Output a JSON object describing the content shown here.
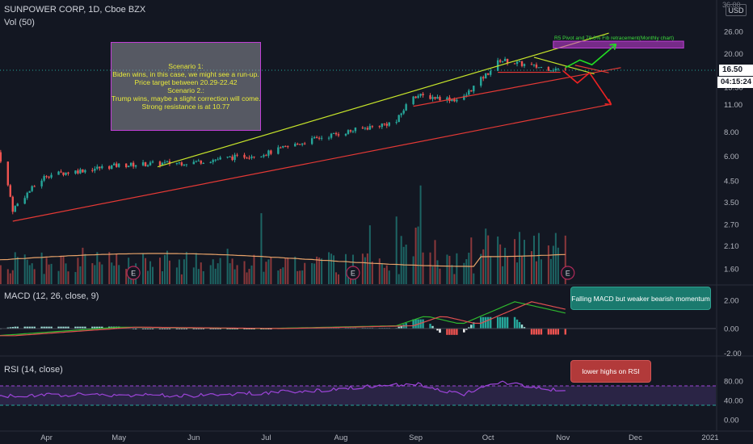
{
  "header": {
    "symbol": "SUNPOWER CORP, 1D, Cboe BZX",
    "vol": "Vol (50)",
    "currency": "USD"
  },
  "macd_header": "MACD (12, 26, close, 9)",
  "rsi_header": "RSI (14, close)",
  "annotations": {
    "scenario_lines": [
      "Scenario 1:",
      "Biden wins, in this case, we might see a run-up.",
      "Price target between 20.29-22.42",
      "Scenario 2.:",
      "Trump wins, maybe a slight correction will come.",
      "Strong resistance is at 10.77"
    ],
    "fib_label": "R5 Pivot and 78.6% Fib retracement(Monthly chart)",
    "macd_callout": "Falling MACD but weaker bearish momentum",
    "rsi_callout": "lower highs on RSI"
  },
  "price_tag": "16.50",
  "time_tag": "04:15:24",
  "earnings_marker": "E",
  "colors": {
    "background": "#131722",
    "up": "#26a69a",
    "down": "#ef5350",
    "support": "#e53935",
    "resistance": "#c8e62a",
    "projection_up": "#22dd22",
    "projection_down": "#ee2222",
    "rsi": "#9c44d8",
    "macd": "#2eb82e",
    "signal": "#e05050"
  },
  "chart_data": {
    "type": "candlestick",
    "x_tick_labels": [
      "Apr",
      "May",
      "Jun",
      "Jul",
      "Aug",
      "Sep",
      "Oct",
      "Nov",
      "Dec",
      "2021"
    ],
    "y_tick_labels": [
      "36.00",
      "26.00",
      "20.00",
      "16.00",
      "13.50",
      "11.00",
      "8.00",
      "6.00",
      "4.50",
      "3.50",
      "2.70",
      "2.10",
      "1.60"
    ],
    "y_scale": "log",
    "last_price": 16.5,
    "earnings_months": [
      "May",
      "Aug",
      "Nov"
    ],
    "price_anchors": [
      {
        "date": "2020-03-12",
        "close": 6.3
      },
      {
        "date": "2020-03-18",
        "close": 3.2
      },
      {
        "date": "2020-04-01",
        "close": 4.8
      },
      {
        "date": "2020-05-01",
        "close": 5.4
      },
      {
        "date": "2020-06-01",
        "close": 5.6
      },
      {
        "date": "2020-07-01",
        "close": 6.2
      },
      {
        "date": "2020-07-24",
        "close": 7.5
      },
      {
        "date": "2020-08-24",
        "close": 9.0
      },
      {
        "date": "2020-08-31",
        "close": 12.3
      },
      {
        "date": "2020-09-20",
        "close": 11.6
      },
      {
        "date": "2020-10-01",
        "close": 16.0
      },
      {
        "date": "2020-10-06",
        "close": 18.6
      },
      {
        "date": "2020-10-20",
        "close": 17.2
      },
      {
        "date": "2020-11-02",
        "close": 16.5
      }
    ],
    "volume_avg_line": true,
    "macd": {
      "title": "MACD (12, 26, close, 9)",
      "y_tick_labels": [
        "2.00",
        "0.00",
        "-2.00"
      ],
      "macd_anchors": [
        {
          "date": "2020-03-12",
          "value": -0.5
        },
        {
          "date": "2020-05-01",
          "value": 0.1
        },
        {
          "date": "2020-07-01",
          "value": 0.0
        },
        {
          "date": "2020-08-24",
          "value": 0.2
        },
        {
          "date": "2020-09-05",
          "value": 0.9
        },
        {
          "date": "2020-09-20",
          "value": 0.3
        },
        {
          "date": "2020-10-12",
          "value": 1.9
        },
        {
          "date": "2020-11-02",
          "value": 1.1
        }
      ]
    },
    "rsi": {
      "title": "RSI (14, close)",
      "y_tick_labels": [
        "80.00",
        "40.00",
        "0.00"
      ],
      "bands": [
        70,
        30
      ],
      "rsi_anchors": [
        {
          "date": "2020-03-12",
          "value": 48
        },
        {
          "date": "2020-04-10",
          "value": 52
        },
        {
          "date": "2020-06-01",
          "value": 50
        },
        {
          "date": "2020-07-20",
          "value": 60
        },
        {
          "date": "2020-08-31",
          "value": 75
        },
        {
          "date": "2020-09-20",
          "value": 52
        },
        {
          "date": "2020-10-06",
          "value": 78
        },
        {
          "date": "2020-10-28",
          "value": 62
        },
        {
          "date": "2020-11-02",
          "value": 60
        }
      ]
    }
  }
}
